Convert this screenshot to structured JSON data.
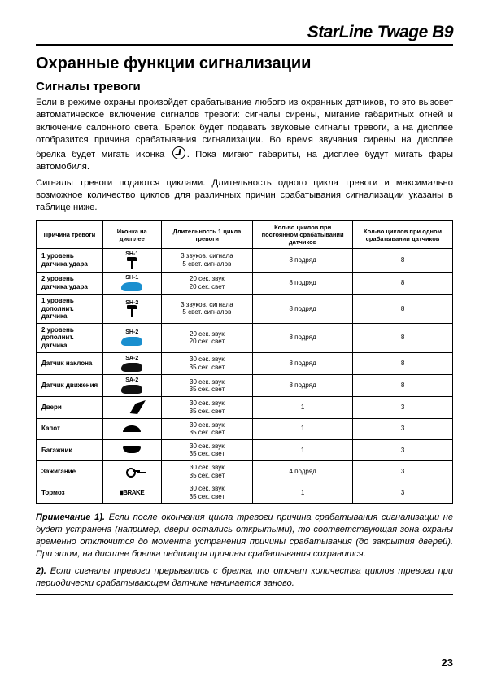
{
  "header": {
    "brand_left": "StarLine",
    "brand_right": "Twage B9"
  },
  "h1": "Охранные функции сигнализации",
  "h2": "Сигналы тревоги",
  "p1": "Если в режиме охраны произойдет срабатывание любого из охранных датчиков, то это вызовет автоматическое включение сигналов тревоги: сигналы сирены, мигание габаритных огней и включение салонного света. Брелок будет подавать звуковые сигналы тревоги, а на дисплее отобразится причина срабатывания сигнализации. Во время звучания сирены на дисплее брелка будет мигать",
  "p1b": "иконка",
  "p1c": ". Пока мигают габариты, на дисплее будут мигать фары автомобиля.",
  "p2": "Сигналы тревоги подаются циклами. Длительность одного цикла тревоги и максимально возможное количество циклов для различных причин срабатывания сигнализации указаны в таблице ниже.",
  "table": {
    "headers": {
      "cause": "Причина тревоги",
      "icon": "Иконка на дисплее",
      "duration": "Длительность 1 цикла тревоги",
      "cycles_const": "Кол-во циклов при постоянном срабатывании датчиков",
      "cycles_single": "Кол-во циклов при одном срабатывании датчиков"
    },
    "rows": [
      {
        "cause": "1 уровень датчика удара",
        "icon_label": "SH-1",
        "icon_type": "hammer-dark",
        "duration": "3 звуков. сигнала\n5 свет. сигналов",
        "const": "8 подряд",
        "single": "8"
      },
      {
        "cause": "2 уровень датчика удара",
        "icon_label": "SH-1",
        "icon_type": "car-blue",
        "duration": "20 сек. звук\n20 сек. свет",
        "const": "8 подряд",
        "single": "8"
      },
      {
        "cause": "1 уровень дополнит. датчика",
        "icon_label": "SH-2",
        "icon_type": "hammer-dark",
        "duration": "3 звуков. сигнала\n5 свет. сигналов",
        "const": "8 подряд",
        "single": "8"
      },
      {
        "cause": "2 уровень дополнит. датчика",
        "icon_label": "SH-2",
        "icon_type": "car-blue",
        "duration": "20 сек. звук\n20 сек. свет",
        "const": "8 подряд",
        "single": "8"
      },
      {
        "cause": "Датчик наклона",
        "icon_label": "SA-2",
        "icon_type": "car-dark",
        "duration": "30 сек. звук\n35 сек. свет",
        "const": "8 подряд",
        "single": "8"
      },
      {
        "cause": "Датчик движения",
        "icon_label": "SA-2",
        "icon_type": "car-dark",
        "duration": "30 сек. звук\n35 сек. свет",
        "const": "8 подряд",
        "single": "8"
      },
      {
        "cause": "Двери",
        "icon_label": "",
        "icon_type": "door",
        "duration": "30 сек. звук\n35 сек. свет",
        "const": "1",
        "single": "3"
      },
      {
        "cause": "Капот",
        "icon_label": "",
        "icon_type": "hood",
        "duration": "30 сек. звук\n35 сек. свет",
        "const": "1",
        "single": "3"
      },
      {
        "cause": "Багажник",
        "icon_label": "",
        "icon_type": "trunk",
        "duration": "30 сек. звук\n35 сек. свет",
        "const": "1",
        "single": "3"
      },
      {
        "cause": "Зажигание",
        "icon_label": "",
        "icon_type": "key",
        "duration": "30 сек. звук\n35 сек. свет",
        "const": "4 подряд",
        "single": "3"
      },
      {
        "cause": "Тормоз",
        "icon_label": "",
        "icon_type": "brake",
        "duration": "30 сек. звук\n35 сек. свет",
        "const": "1",
        "single": "3"
      }
    ],
    "brake_text": "BRAKE"
  },
  "note1_lead": "Примечание 1).",
  "note1": "Если после окончания цикла тревоги причина срабатывания сигнализации не будет устранена (например, двери остались открытыми), то соответствующая зона охраны временно отключится до момента устранения причины срабатывания (до закрытия дверей). При этом, на дисплее брелка индикация причины срабатывания сохранится.",
  "note2_lead": "2).",
  "note2": "Если сигналы тревоги прерывались с брелка, то отсчет количества циклов тревоги при периодически срабатывающем датчике начинается заново.",
  "page_number": "23"
}
